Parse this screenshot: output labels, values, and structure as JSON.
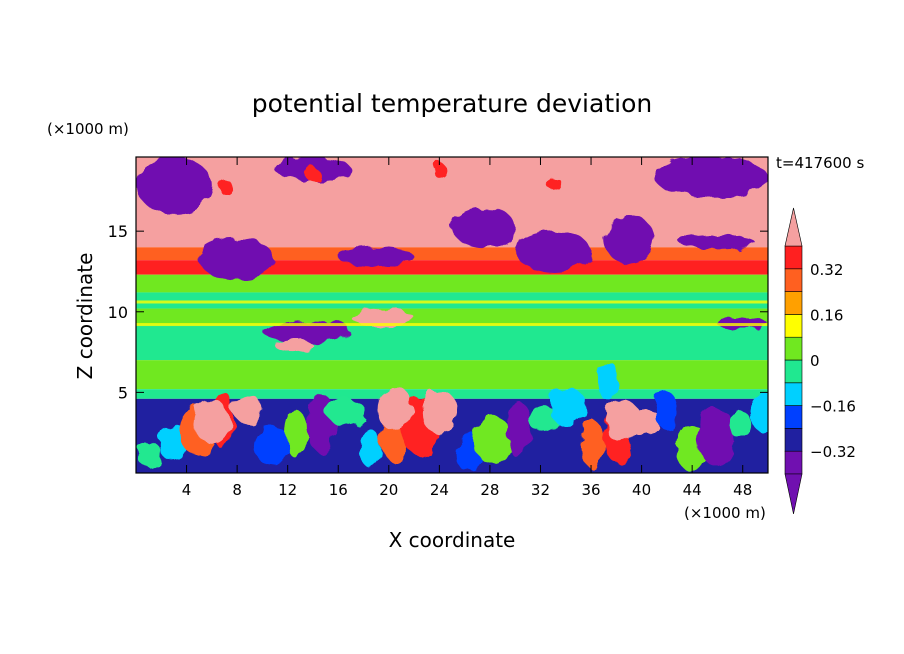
{
  "chart_data": {
    "type": "heatmap",
    "title": "potential temperature deviation",
    "time_label": "t=417600 s",
    "xlabel": "X coordinate",
    "ylabel": "Z coordinate",
    "x_unit": "(×1000 m)",
    "y_unit": "(×1000 m)",
    "xlim": [
      0,
      50
    ],
    "ylim": [
      0,
      19.6
    ],
    "x_ticks": [
      4,
      8,
      12,
      16,
      20,
      24,
      28,
      32,
      36,
      40,
      44,
      48
    ],
    "y_ticks": [
      5,
      10,
      15
    ],
    "colorbar": {
      "levels": [
        -0.4,
        -0.32,
        -0.24,
        -0.16,
        -0.08,
        0,
        0.08,
        0.16,
        0.24,
        0.32,
        0.4
      ],
      "labels": [
        "0.32",
        "0.16",
        "0",
        "-0.16",
        "-0.32"
      ],
      "label_values": [
        0.32,
        0.16,
        0,
        -0.16,
        -0.32
      ],
      "extend": "both",
      "colors": [
        "#7010b0",
        "#2020a0",
        "#0040ff",
        "#00d0ff",
        "#20e890",
        "#70e820",
        "#ffff00",
        "#ffa000",
        "#ff6020",
        "#ff2020",
        "#f5a0a0",
        "#ffffff"
      ]
    }
  }
}
